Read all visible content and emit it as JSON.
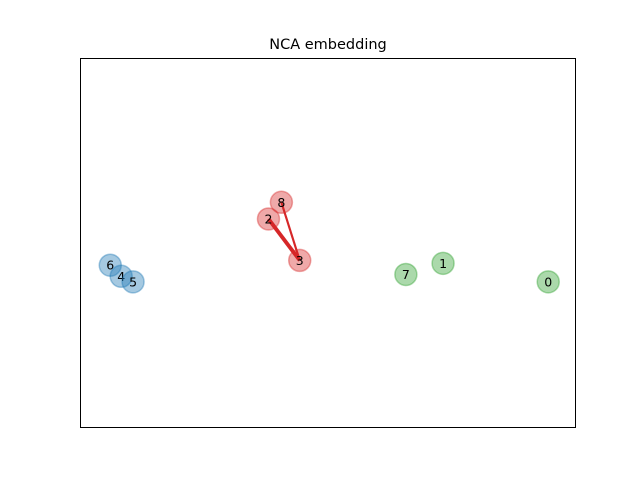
{
  "chart_data": {
    "type": "scatter",
    "title": "NCA embedding",
    "xlabel": "",
    "ylabel": "",
    "axes_ticks_visible": false,
    "grid": false,
    "xlim": [
      0,
      100
    ],
    "ylim": [
      0,
      100
    ],
    "colors": {
      "blue": "#1f77b4",
      "red": "#d62728",
      "green": "#2ca02c",
      "link": "#d62728"
    },
    "points": [
      {
        "label": "0",
        "x": 94.4,
        "y": 39.5,
        "color": "green"
      },
      {
        "label": "1",
        "x": 73.2,
        "y": 44.5,
        "color": "green"
      },
      {
        "label": "2",
        "x": 38.0,
        "y": 56.5,
        "color": "red"
      },
      {
        "label": "3",
        "x": 44.3,
        "y": 45.3,
        "color": "red"
      },
      {
        "label": "4",
        "x": 8.3,
        "y": 41.0,
        "color": "blue"
      },
      {
        "label": "5",
        "x": 10.7,
        "y": 39.5,
        "color": "blue"
      },
      {
        "label": "6",
        "x": 6.1,
        "y": 44.0,
        "color": "blue"
      },
      {
        "label": "7",
        "x": 65.7,
        "y": 41.5,
        "color": "green"
      },
      {
        "label": "8",
        "x": 40.6,
        "y": 61.0,
        "color": "red"
      }
    ],
    "links": [
      {
        "from": "3",
        "to": "2",
        "weight": 0.9
      },
      {
        "from": "3",
        "to": "8",
        "weight": 0.4
      }
    ]
  }
}
